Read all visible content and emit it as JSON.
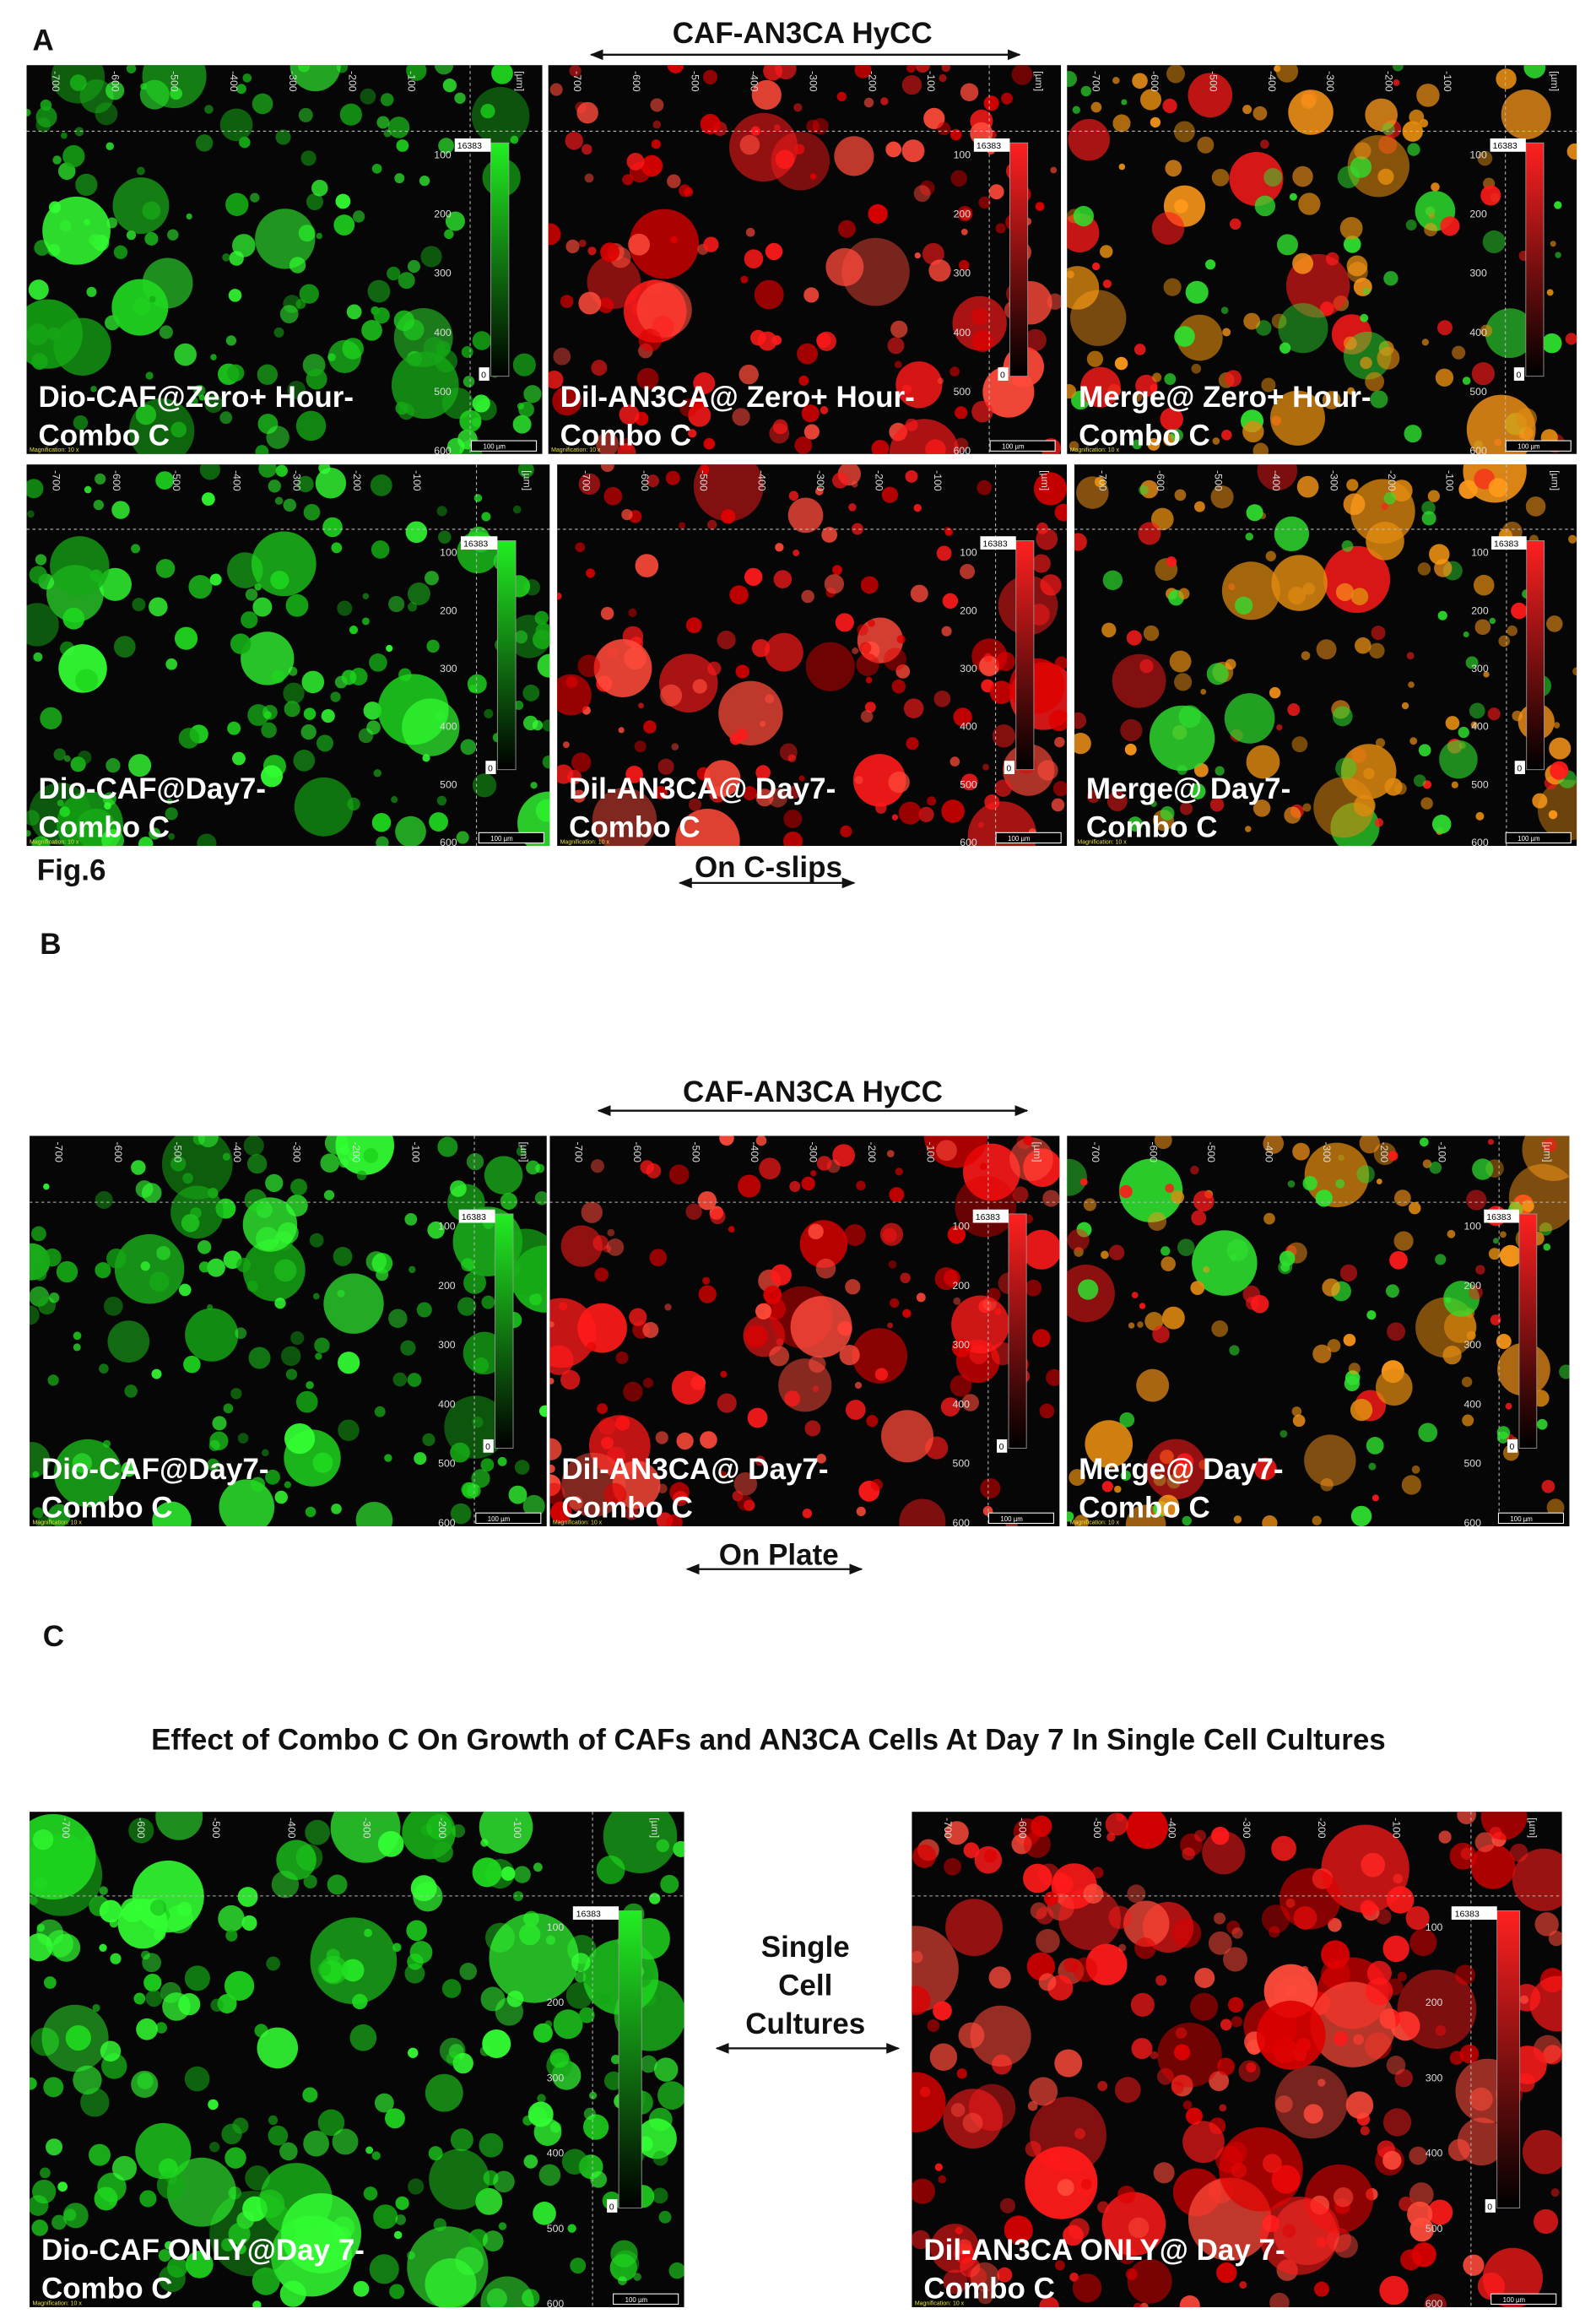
{
  "figure_label": "Fig.6",
  "panels": [
    {
      "label": "A",
      "title": "CAF-AN3CA HyCC",
      "footer": "On C-slips",
      "images": [
        {
          "caption": [
            "Dio-CAF@Zero+  Hour-",
            "Combo C"
          ],
          "stain": "green"
        },
        {
          "caption": [
            "Dil-AN3CA@ Zero+  Hour-",
            "Combo C"
          ],
          "stain": "red"
        },
        {
          "caption": [
            "Merge@ Zero+  Hour-",
            "Combo C"
          ],
          "stain": "merge"
        },
        {
          "caption": [
            "Dio-CAF@Day7-",
            "Combo C"
          ],
          "stain": "green"
        },
        {
          "caption": [
            "Dil-AN3CA@ Day7-",
            "Combo C"
          ],
          "stain": "red"
        },
        {
          "caption": [
            "Merge@ Day7-",
            "Combo C"
          ],
          "stain": "merge"
        }
      ]
    },
    {
      "label": "B",
      "title": "CAF-AN3CA HyCC",
      "footer": "On Plate",
      "images": [
        {
          "caption": [
            "Dio-CAF@Day7-",
            "Combo C"
          ],
          "stain": "green"
        },
        {
          "caption": [
            "Dil-AN3CA@ Day7-",
            "Combo C"
          ],
          "stain": "red"
        },
        {
          "caption": [
            "Merge@ Day7-",
            "Combo C"
          ],
          "stain": "merge"
        }
      ]
    },
    {
      "label": "C",
      "title": "Effect of Combo C On Growth of CAFs and AN3CA Cells At Day 7 In Single Cell Cultures",
      "middle": [
        "Single",
        "Cell",
        "Cultures"
      ],
      "images": [
        {
          "caption": [
            "Dio-CAF ONLY@Day 7-",
            "Combo C"
          ],
          "stain": "green"
        },
        {
          "caption": [
            "Dil-AN3CA ONLY@ Day 7-",
            "Combo C"
          ],
          "stain": "red"
        }
      ]
    }
  ],
  "ruler": {
    "top": [
      "-700",
      "-600",
      "-500",
      "-400",
      "-300",
      "-200",
      "-100"
    ],
    "side": [
      "100",
      "200",
      "300",
      "400",
      "500",
      "600"
    ],
    "unit": "[µm]",
    "colorbar_max": "16383",
    "colorbar_min": "0",
    "scale_bar": "100 µm",
    "magnification": "Magnification: 10 x"
  }
}
